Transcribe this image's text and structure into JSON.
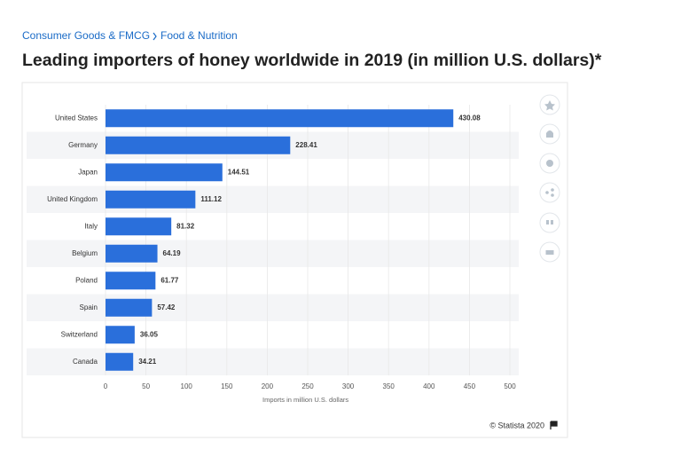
{
  "breadcrumb": [
    "Consumer Goods & FMCG",
    "Food & Nutrition"
  ],
  "chart_data": {
    "type": "bar",
    "orientation": "horizontal",
    "title": "Leading importers of honey worldwide in 2019 (in million U.S. dollars)*",
    "categories": [
      "United States",
      "Germany",
      "Japan",
      "United Kingdom",
      "Italy",
      "Belgium",
      "Poland",
      "Spain",
      "Switzerland",
      "Canada"
    ],
    "values": [
      430.08,
      228.41,
      144.51,
      111.12,
      81.32,
      64.19,
      61.77,
      57.42,
      36.05,
      34.21
    ],
    "color": "#2a6fdb",
    "xlim": [
      0,
      500
    ],
    "xticks": [
      0,
      50,
      100,
      150,
      200,
      250,
      300,
      350,
      400,
      450,
      500
    ],
    "x_label": "Imports in million U.S. dollars",
    "grid": true,
    "source": "© Statista 2020"
  }
}
